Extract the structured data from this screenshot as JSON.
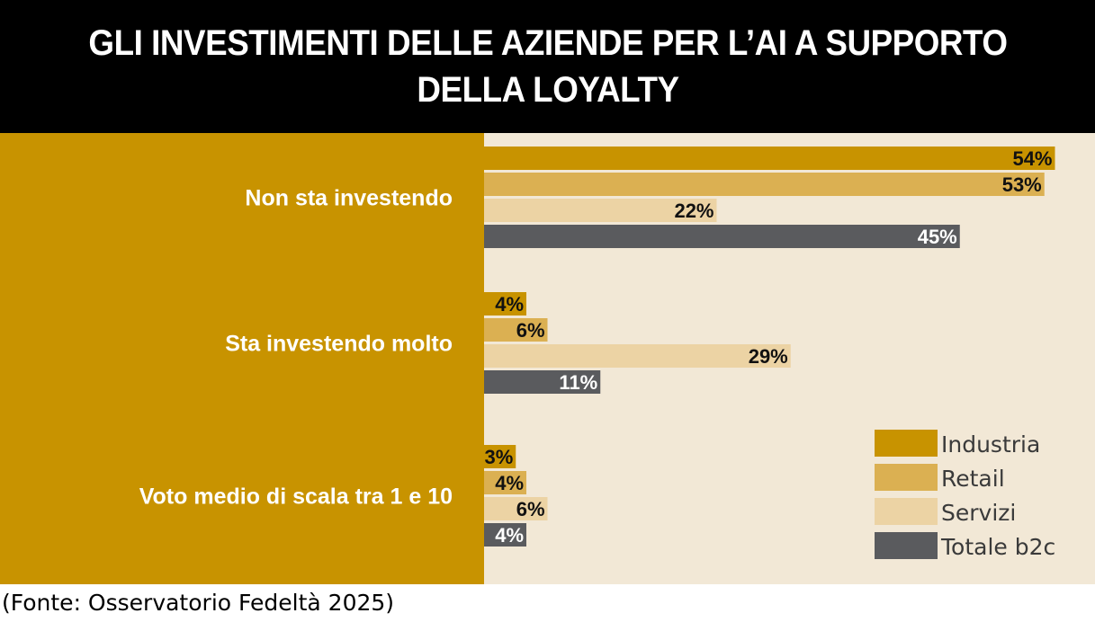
{
  "header": {
    "title": "GLI INVESTIMENTI DELLE AZIENDE PER L’AI A SUPPORTO DELLA LOYALTY"
  },
  "footer": {
    "source": "(Fonte: Osservatorio Fedeltà 2025)"
  },
  "colors": {
    "label_panel": "#c89300",
    "plot_background": "#f2e8d6",
    "title_background": "#000000"
  },
  "chart_data": {
    "type": "bar",
    "orientation": "horizontal",
    "title": "GLI INVESTIMENTI DELLE AZIENDE PER L’AI A SUPPORTO DELLA LOYALTY",
    "categories": [
      "Non sta investendo",
      "Sta investendo molto",
      "Voto medio di scala tra 1 e 10"
    ],
    "series": [
      {
        "name": "Industria",
        "color": "#c89300",
        "values": [
          54,
          4,
          3
        ],
        "labels": [
          "54%",
          "4%",
          "3%"
        ]
      },
      {
        "name": "Retail",
        "color": "#dbb052",
        "values": [
          53,
          6,
          4
        ],
        "labels": [
          "53%",
          "6%",
          "4%"
        ]
      },
      {
        "name": "Servizi",
        "color": "#ecd3a4",
        "values": [
          22,
          29,
          6
        ],
        "labels": [
          "22%",
          "29%",
          "6%"
        ]
      },
      {
        "name": "Totale b2c",
        "color": "#5a5b5e",
        "values": [
          45,
          11,
          4
        ],
        "labels": [
          "45%",
          "11%",
          "4%"
        ]
      }
    ],
    "xlim": [
      0,
      55
    ],
    "legend_position": "bottom-right",
    "xlabel": "",
    "ylabel": "",
    "grid": false
  }
}
